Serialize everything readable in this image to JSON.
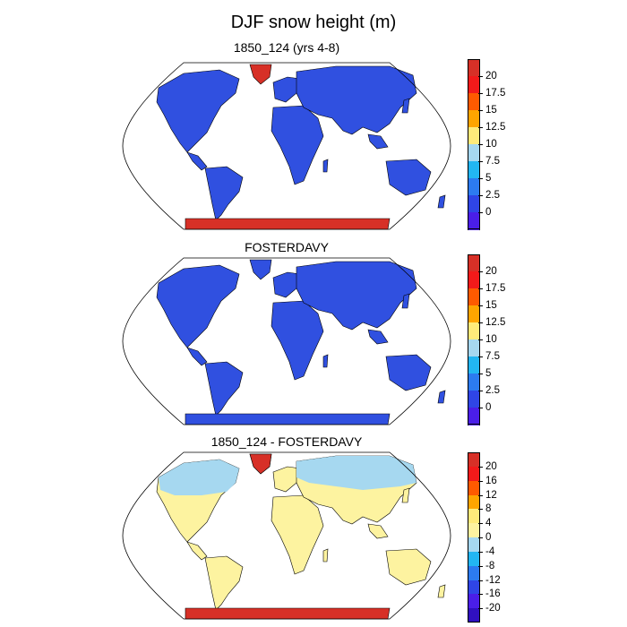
{
  "title": "DJF snow height (m)",
  "panels": [
    {
      "title": "1850_124 (yrs 4-8)",
      "colorbar": {
        "labels": [
          "20",
          "17.5",
          "15",
          "12.5",
          "10",
          "7.5",
          "5",
          "2.5",
          "0"
        ],
        "colors": [
          "#d73027",
          "#f21a1a",
          "#ff5a00",
          "#ffa500",
          "#ffeb7a",
          "#a6d8f0",
          "#22b6f2",
          "#2c7bf0",
          "#2f45e6",
          "#4a1ee8"
        ]
      },
      "land_color": "#3050e0",
      "greenland_color": "#d73027",
      "antarctica_color": "#d73027"
    },
    {
      "title": "FOSTERDAVY",
      "colorbar": {
        "labels": [
          "20",
          "17.5",
          "15",
          "12.5",
          "10",
          "7.5",
          "5",
          "2.5",
          "0"
        ],
        "colors": [
          "#d73027",
          "#f21a1a",
          "#ff5a00",
          "#ffa500",
          "#ffeb7a",
          "#a6d8f0",
          "#22b6f2",
          "#2c7bf0",
          "#2f45e6",
          "#4a1ee8"
        ]
      },
      "land_color": "#3050e0",
      "greenland_color": "#3050e0",
      "antarctica_color": "#3050e0"
    },
    {
      "title": "1850_124 - FOSTERDAVY",
      "colorbar": {
        "labels": [
          "20",
          "16",
          "12",
          "8",
          "4",
          "0",
          "-4",
          "-8",
          "-12",
          "-16",
          "-20"
        ],
        "colors": [
          "#d73027",
          "#f21a1a",
          "#ff5a00",
          "#ffa500",
          "#ffeb7a",
          "#fdf3a0",
          "#a6d8f0",
          "#22b6f2",
          "#2c7bf0",
          "#2f45e6",
          "#4a1ee8",
          "#3010c0"
        ]
      },
      "land_color": "#fdf3a0",
      "north_color": "#a6d8f0",
      "greenland_color": "#d73027",
      "antarctica_color": "#d73027"
    }
  ]
}
